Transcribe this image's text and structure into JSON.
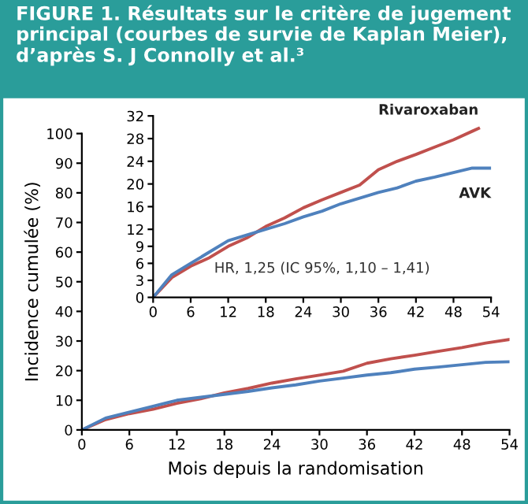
{
  "chart_data": [
    {
      "type": "line",
      "title": "FIGURE 1. Résultats sur le critère de jugement principal (courbes de survie de Kaplan Meier), d’après S. J Connolly et al.³",
      "xlabel": "Mois depuis la randomisation",
      "ylabel": "Incidence cumulée (%)",
      "xlim": [
        0,
        54
      ],
      "ylim": [
        0,
        100
      ],
      "xticks": [
        0,
        6,
        12,
        18,
        24,
        30,
        36,
        42,
        48,
        54
      ],
      "yticks": [
        0,
        10,
        20,
        30,
        40,
        50,
        60,
        70,
        80,
        90,
        100
      ],
      "grid": false,
      "legend": false,
      "marker": "none",
      "line_style": "solid",
      "x": [
        0,
        3,
        6,
        9,
        12,
        15,
        18,
        21,
        24,
        27,
        30,
        33,
        36,
        39,
        42,
        45,
        48,
        51,
        54
      ],
      "series": [
        {
          "color": "#c0504d",
          "values": [
            0,
            3.5,
            5.5,
            7,
            9,
            10.5,
            12.5,
            14,
            15.8,
            17.2,
            18.5,
            19.8,
            22.5,
            24,
            25.2,
            26.5,
            27.8,
            29.3,
            30.5
          ]
        },
        {
          "color": "#4f81bd",
          "values": [
            0,
            4,
            6,
            8,
            10,
            11,
            12,
            13,
            14.2,
            15.2,
            16.5,
            17.5,
            18.5,
            19.3,
            20.5,
            21.2,
            22,
            22.8,
            23
          ]
        }
      ]
    },
    {
      "type": "line",
      "xlim": [
        0,
        54
      ],
      "ylim": [
        0,
        32
      ],
      "xticks": [
        0,
        6,
        12,
        18,
        24,
        30,
        36,
        42,
        48,
        54
      ],
      "yticks": [
        0,
        3,
        6,
        9,
        12,
        16,
        20,
        24,
        28,
        32
      ],
      "grid": false,
      "legend": false,
      "marker": "none",
      "line_style": "solid",
      "annotations": [
        "HR, 1,25 (IC 95%, 1,10 – 1,41)"
      ],
      "x": [
        0,
        3,
        6,
        9,
        12,
        15,
        18,
        21,
        24,
        27,
        30,
        33,
        36,
        39,
        42,
        45,
        48,
        51,
        52
      ],
      "series": [
        {
          "name": "Rivaroxaban",
          "color": "#c0504d",
          "values": [
            0,
            3.5,
            5.5,
            7,
            9,
            10.5,
            12.5,
            14,
            15.8,
            17.2,
            18.5,
            19.8,
            22.5,
            24,
            25.2,
            26.5,
            27.8,
            29.3,
            29.8
          ]
        },
        {
          "name": "AVK",
          "color": "#4f81bd",
          "x": [
            0,
            3,
            6,
            9,
            12,
            15,
            18,
            21,
            24,
            27,
            30,
            33,
            36,
            39,
            42,
            45,
            48,
            51,
            54
          ],
          "values": [
            0,
            4,
            6,
            8,
            10,
            11,
            12,
            13,
            14.2,
            15.2,
            16.5,
            17.5,
            18.5,
            19.3,
            20.5,
            21.2,
            22,
            22.8,
            22.8
          ]
        }
      ]
    }
  ]
}
